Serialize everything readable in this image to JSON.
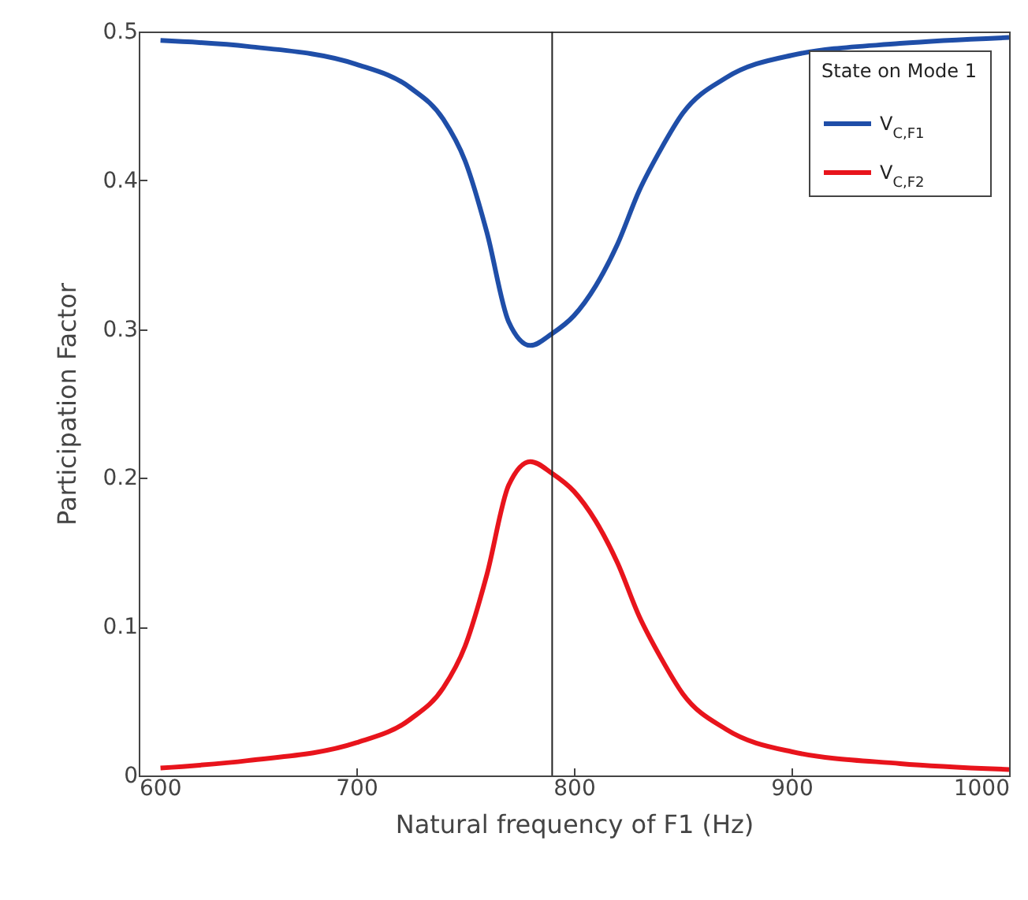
{
  "chart_data": {
    "type": "line",
    "xlabel": "Natural frequency of F1  (Hz)",
    "ylabel": "Participation Factor",
    "legend_title": "State on Mode 1",
    "legend": "top right",
    "grid": false,
    "line_style": "solid",
    "x": [
      610,
      650,
      700,
      725,
      740,
      750,
      760,
      770,
      780,
      790,
      800,
      810,
      820,
      830,
      840,
      850,
      870,
      900,
      950,
      1000
    ],
    "series": [
      {
        "name": "V$_{C,F1}$",
        "color": "#1f4ea8",
        "values": [
          0.494,
          0.49,
          0.478,
          0.462,
          0.441,
          0.413,
          0.365,
          0.305,
          0.289,
          0.297,
          0.309,
          0.329,
          0.357,
          0.393,
          0.421,
          0.445,
          0.469,
          0.484,
          0.492,
          0.496
        ]
      },
      {
        "name": "V$_{C,F2}$",
        "color": "#e8141c",
        "values": [
          0.005,
          0.01,
          0.022,
          0.038,
          0.059,
          0.087,
          0.135,
          0.195,
          0.211,
          0.203,
          0.191,
          0.171,
          0.143,
          0.107,
          0.079,
          0.055,
          0.031,
          0.016,
          0.008,
          0.004
        ]
      }
    ],
    "xlim": [
      600,
      1000
    ],
    "xticks": [
      600,
      700,
      800,
      900,
      1000
    ],
    "ylim": [
      0,
      0.5
    ],
    "yticks": [
      0,
      0.1,
      0.2,
      0.3,
      0.4,
      0.5
    ],
    "ref_lines": [
      {
        "axis": "x",
        "value": 790,
        "color": "#222222"
      }
    ]
  }
}
